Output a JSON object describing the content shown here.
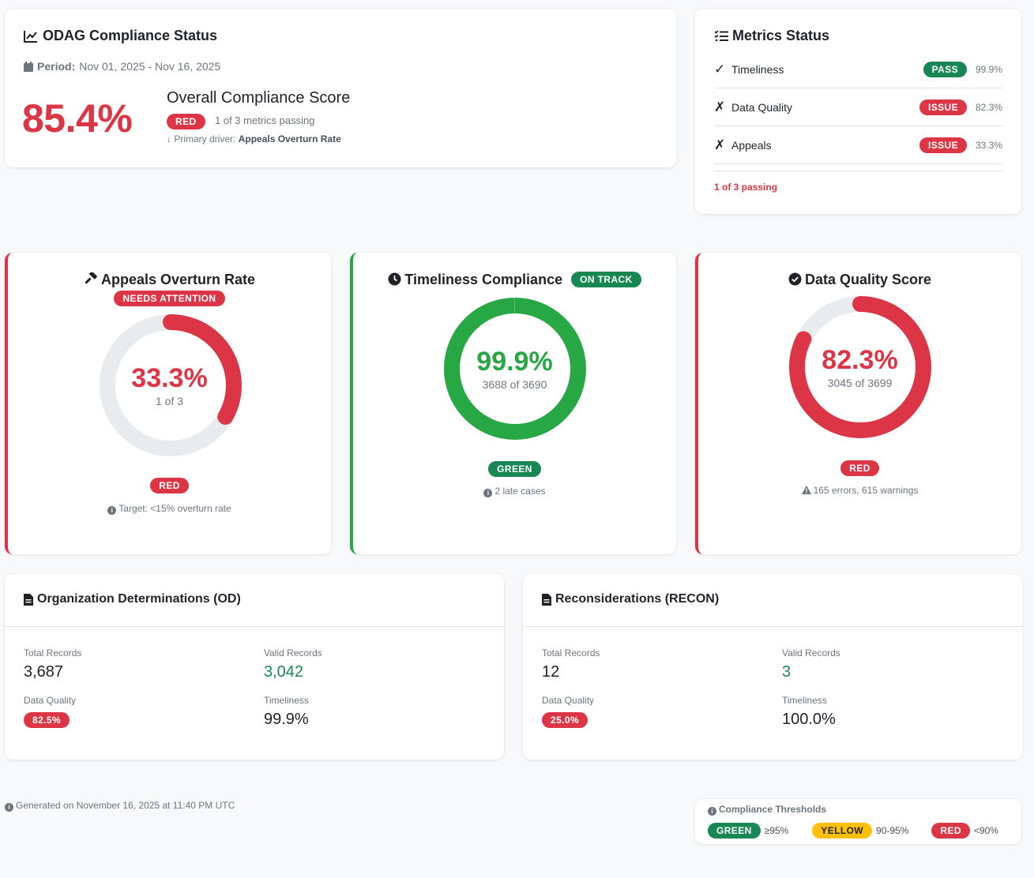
{
  "header": {
    "title": "ODAG Compliance Status",
    "period_label": "Period:",
    "period_value": "Nov 01, 2025 - Nov 16, 2025",
    "score": "85.4%",
    "score_title": "Overall Compliance Score",
    "score_badge": "RED",
    "score_sub": "1 of 3 metrics passing",
    "driver_label": "Primary driver:",
    "driver_value": "Appeals Overturn Rate"
  },
  "metrics_status": {
    "title": "Metrics Status",
    "rows": [
      {
        "mark": "✓",
        "label": "Timeliness",
        "badge": "PASS",
        "pct": "99.9%"
      },
      {
        "mark": "✗",
        "label": "Data Quality",
        "badge": "ISSUE",
        "pct": "82.3%"
      },
      {
        "mark": "✗",
        "label": "Appeals",
        "badge": "ISSUE",
        "pct": "33.3%"
      }
    ],
    "footer": "1 of 3 passing"
  },
  "gauges": {
    "appeals": {
      "title": "Appeals Overturn Rate",
      "top_badge": "NEEDS ATTENTION",
      "value": "33.3%",
      "fraction": 0.333,
      "sub": "1 of 3",
      "status_badge": "RED",
      "note": "Target: <15% overturn rate"
    },
    "timeliness": {
      "title": "Timeliness Compliance",
      "top_badge": "ON TRACK",
      "value": "99.9%",
      "fraction": 0.999,
      "sub": "3688 of 3690",
      "status_badge": "GREEN",
      "note": "2 late cases"
    },
    "data_quality": {
      "title": "Data Quality Score",
      "value": "82.3%",
      "fraction": 0.823,
      "sub": "3045 of 3699",
      "status_badge": "RED",
      "note": "165 errors, 615 warnings"
    }
  },
  "od": {
    "title": "Organization Determinations (OD)",
    "total_label": "Total Records",
    "total_value": "3,687",
    "valid_label": "Valid Records",
    "valid_value": "3,042",
    "dq_label": "Data Quality",
    "dq_value": "82.5%",
    "time_label": "Timeliness",
    "time_value": "99.9%"
  },
  "recon": {
    "title": "Reconsiderations (RECON)",
    "total_label": "Total Records",
    "total_value": "12",
    "valid_label": "Valid Records",
    "valid_value": "3",
    "dq_label": "Data Quality",
    "dq_value": "25.0%",
    "time_label": "Timeliness",
    "time_value": "100.0%"
  },
  "footer": {
    "generated": "Generated on November 16, 2025 at 11:40 PM UTC",
    "thresholds_title": "Compliance Thresholds",
    "green_label": "GREEN",
    "green_range": "≥95%",
    "yellow_label": "YELLOW",
    "yellow_range": "90-95%",
    "red_label": "RED",
    "red_range": "<90%"
  },
  "colors": {
    "red": "#dc3545",
    "green": "#28a745",
    "dark_green": "#198754",
    "yellow": "#ffc107",
    "track": "#e9ecef"
  }
}
